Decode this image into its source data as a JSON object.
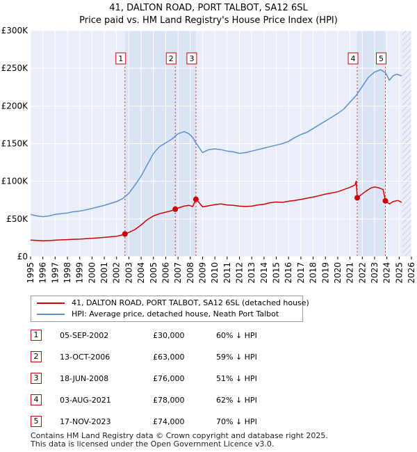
{
  "chart_data": {
    "type": "line",
    "title": "41, DALTON ROAD, PORT TALBOT, SA12 6SL",
    "subtitle": "Price paid vs. HM Land Registry's House Price Index (HPI)",
    "xlim": [
      1995,
      2026
    ],
    "ylim": [
      0,
      300000
    ],
    "x_ticks": [
      "1995",
      "1996",
      "1997",
      "1998",
      "1999",
      "2000",
      "2001",
      "2002",
      "2003",
      "2004",
      "2005",
      "2006",
      "2007",
      "2008",
      "2009",
      "2010",
      "2011",
      "2012",
      "2013",
      "2014",
      "2015",
      "2016",
      "2017",
      "2018",
      "2019",
      "2020",
      "2021",
      "2022",
      "2023",
      "2024",
      "2025",
      "2026"
    ],
    "y_ticks": [
      {
        "value": 0,
        "label": "£0"
      },
      {
        "value": 50000,
        "label": "£50K"
      },
      {
        "value": 100000,
        "label": "£100K"
      },
      {
        "value": 150000,
        "label": "£150K"
      },
      {
        "value": 200000,
        "label": "£200K"
      },
      {
        "value": 250000,
        "label": "£250K"
      },
      {
        "value": 300000,
        "label": "£300K"
      }
    ],
    "grid": true,
    "colors": {
      "price_paid": "#cc0000",
      "hpi": "#5b8fd0",
      "background": "#eaeef8",
      "shade": "#dbe4f4",
      "grid": "#ffffff"
    },
    "shaded_spans": [
      [
        2002.68,
        2008.46
      ],
      [
        2021.59,
        2023.88
      ]
    ],
    "hatched_future_from": 2025.25,
    "series": [
      {
        "name": "41, DALTON ROAD, PORT TALBOT, SA12 6SL (detached house)",
        "color": "#cc0000",
        "points": [
          [
            1995.0,
            22000
          ],
          [
            1995.5,
            21500
          ],
          [
            1996.0,
            21000
          ],
          [
            1996.5,
            21200
          ],
          [
            1997.0,
            21800
          ],
          [
            1997.5,
            22200
          ],
          [
            1998.0,
            22500
          ],
          [
            1998.5,
            23000
          ],
          [
            1999.0,
            23200
          ],
          [
            1999.5,
            23800
          ],
          [
            2000.0,
            24200
          ],
          [
            2000.5,
            24800
          ],
          [
            2001.0,
            25500
          ],
          [
            2001.5,
            26300
          ],
          [
            2002.0,
            27000
          ],
          [
            2002.4,
            28500
          ],
          [
            2002.68,
            30000
          ],
          [
            2003.0,
            32000
          ],
          [
            2003.5,
            36000
          ],
          [
            2004.0,
            42000
          ],
          [
            2004.5,
            49000
          ],
          [
            2005.0,
            54000
          ],
          [
            2005.5,
            57000
          ],
          [
            2006.0,
            59000
          ],
          [
            2006.5,
            61000
          ],
          [
            2006.78,
            63000
          ],
          [
            2007.0,
            64500
          ],
          [
            2007.5,
            67000
          ],
          [
            2007.9,
            68000
          ],
          [
            2008.2,
            66500
          ],
          [
            2008.46,
            76000
          ],
          [
            2008.7,
            72000
          ],
          [
            2009.0,
            66000
          ],
          [
            2009.5,
            67500
          ],
          [
            2010.0,
            69000
          ],
          [
            2010.5,
            70000
          ],
          [
            2011.0,
            68500
          ],
          [
            2011.5,
            68000
          ],
          [
            2012.0,
            67000
          ],
          [
            2012.5,
            66500
          ],
          [
            2013.0,
            67000
          ],
          [
            2013.5,
            68500
          ],
          [
            2014.0,
            69500
          ],
          [
            2014.5,
            71500
          ],
          [
            2015.0,
            72500
          ],
          [
            2015.5,
            72000
          ],
          [
            2016.0,
            73500
          ],
          [
            2016.5,
            74500
          ],
          [
            2017.0,
            76000
          ],
          [
            2017.5,
            77500
          ],
          [
            2018.0,
            79000
          ],
          [
            2018.5,
            81000
          ],
          [
            2019.0,
            83000
          ],
          [
            2019.5,
            84500
          ],
          [
            2020.0,
            86000
          ],
          [
            2020.5,
            89000
          ],
          [
            2021.0,
            92000
          ],
          [
            2021.4,
            95000
          ],
          [
            2021.5,
            100000
          ],
          [
            2021.59,
            78000
          ],
          [
            2021.9,
            82000
          ],
          [
            2022.3,
            87000
          ],
          [
            2022.7,
            91000
          ],
          [
            2023.0,
            92500
          ],
          [
            2023.4,
            91000
          ],
          [
            2023.7,
            89000
          ],
          [
            2023.88,
            74000
          ],
          [
            2024.2,
            70000
          ],
          [
            2024.5,
            73000
          ],
          [
            2024.9,
            74500
          ],
          [
            2025.2,
            72000
          ]
        ]
      },
      {
        "name": "HPI: Average price, detached house, Neath Port Talbot",
        "color": "#5b8fd0",
        "points": [
          [
            1995.0,
            56000
          ],
          [
            1995.5,
            54000
          ],
          [
            1996.0,
            53000
          ],
          [
            1996.5,
            54000
          ],
          [
            1997.0,
            56000
          ],
          [
            1997.5,
            57000
          ],
          [
            1998.0,
            58000
          ],
          [
            1998.5,
            59500
          ],
          [
            1999.0,
            60500
          ],
          [
            1999.5,
            62000
          ],
          [
            2000.0,
            64000
          ],
          [
            2000.5,
            66000
          ],
          [
            2001.0,
            68000
          ],
          [
            2001.5,
            70500
          ],
          [
            2002.0,
            73000
          ],
          [
            2002.5,
            77000
          ],
          [
            2003.0,
            84000
          ],
          [
            2003.5,
            95000
          ],
          [
            2004.0,
            107000
          ],
          [
            2004.5,
            122000
          ],
          [
            2005.0,
            137000
          ],
          [
            2005.5,
            146000
          ],
          [
            2006.0,
            151000
          ],
          [
            2006.5,
            156000
          ],
          [
            2007.0,
            163000
          ],
          [
            2007.5,
            166000
          ],
          [
            2007.9,
            163000
          ],
          [
            2008.2,
            158000
          ],
          [
            2008.5,
            150000
          ],
          [
            2009.0,
            138000
          ],
          [
            2009.5,
            142000
          ],
          [
            2010.0,
            143000
          ],
          [
            2010.5,
            142000
          ],
          [
            2011.0,
            140000
          ],
          [
            2011.5,
            139000
          ],
          [
            2012.0,
            137000
          ],
          [
            2012.5,
            138000
          ],
          [
            2013.0,
            140000
          ],
          [
            2013.5,
            142000
          ],
          [
            2014.0,
            144000
          ],
          [
            2014.5,
            146000
          ],
          [
            2015.0,
            148000
          ],
          [
            2015.5,
            150000
          ],
          [
            2016.0,
            153000
          ],
          [
            2016.5,
            158000
          ],
          [
            2017.0,
            162000
          ],
          [
            2017.5,
            165000
          ],
          [
            2018.0,
            170000
          ],
          [
            2018.5,
            175000
          ],
          [
            2019.0,
            180000
          ],
          [
            2019.5,
            185000
          ],
          [
            2020.0,
            190000
          ],
          [
            2020.5,
            196000
          ],
          [
            2021.0,
            205000
          ],
          [
            2021.5,
            214000
          ],
          [
            2022.0,
            226000
          ],
          [
            2022.5,
            238000
          ],
          [
            2023.0,
            245000
          ],
          [
            2023.5,
            248000
          ],
          [
            2023.9,
            244000
          ],
          [
            2024.2,
            234000
          ],
          [
            2024.5,
            240000
          ],
          [
            2024.8,
            242000
          ],
          [
            2025.2,
            240000
          ]
        ]
      }
    ],
    "transactions": [
      {
        "n": "1",
        "x": 2002.68,
        "price": 30000,
        "date": "05-SEP-2002",
        "price_label": "£30,000",
        "hpi_label": "60% ↓ HPI"
      },
      {
        "n": "2",
        "x": 2006.78,
        "price": 63000,
        "date": "13-OCT-2006",
        "price_label": "£63,000",
        "hpi_label": "59% ↓ HPI"
      },
      {
        "n": "3",
        "x": 2008.46,
        "price": 76000,
        "date": "18-JUN-2008",
        "price_label": "£76,000",
        "hpi_label": "51% ↓ HPI"
      },
      {
        "n": "4",
        "x": 2021.59,
        "price": 78000,
        "date": "03-AUG-2021",
        "price_label": "£78,000",
        "hpi_label": "62% ↓ HPI"
      },
      {
        "n": "5",
        "x": 2023.88,
        "price": 74000,
        "date": "17-NOV-2023",
        "price_label": "£74,000",
        "hpi_label": "70% ↓ HPI"
      }
    ]
  },
  "legend": {
    "item1": "41, DALTON ROAD, PORT TALBOT, SA12 6SL (detached house)",
    "item2": "HPI: Average price, detached house, Neath Port Talbot"
  },
  "footer": {
    "line1": "Contains HM Land Registry data © Crown copyright and database right 2025.",
    "line2": "This data is licensed under the Open Government Licence v3.0."
  }
}
